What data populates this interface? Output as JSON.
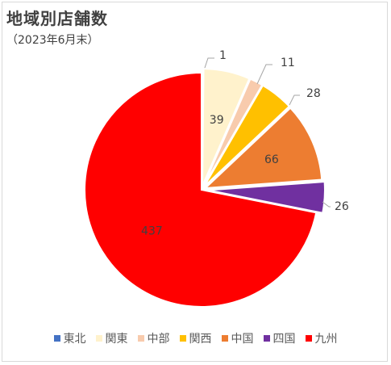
{
  "chart_data": {
    "type": "pie",
    "title": "地域別店舗数",
    "subtitle": "（2023年6月末）",
    "legend_position": "bottom",
    "series": [
      {
        "name": "東北",
        "value": 1,
        "color": "#4472C4"
      },
      {
        "name": "関東",
        "value": 39,
        "color": "#FFF2CC"
      },
      {
        "name": "中部",
        "value": 11,
        "color": "#F8CBAD"
      },
      {
        "name": "関西",
        "value": 28,
        "color": "#FFC000"
      },
      {
        "name": "中国",
        "value": 66,
        "color": "#ED7D31"
      },
      {
        "name": "四国",
        "value": 26,
        "color": "#7030A0"
      },
      {
        "name": "九州",
        "value": 437,
        "color": "#FF0000"
      }
    ]
  }
}
